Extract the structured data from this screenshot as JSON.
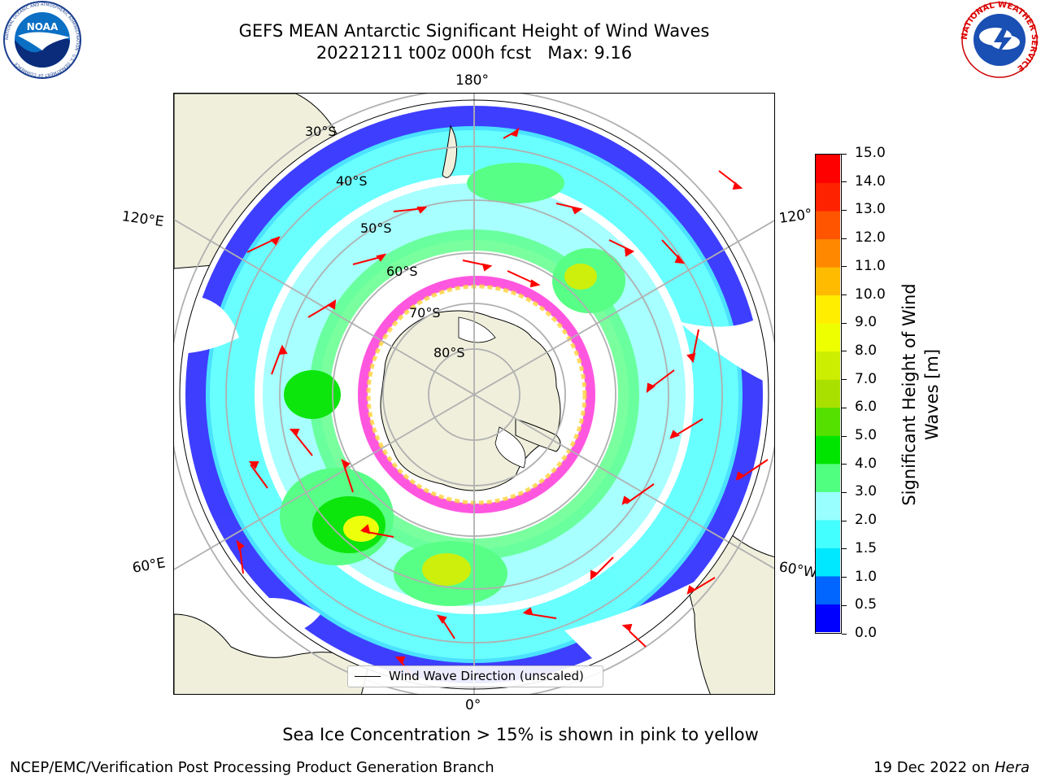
{
  "title": {
    "line1": "GEFS MEAN Antarctic Significant Height of Wind Waves",
    "line2": "20221211 t00z 000h fcst   Max: 9.16"
  },
  "map": {
    "projection": "south-polar-stereographic",
    "lon_labels": {
      "top": "180°",
      "bottom": "0°",
      "upper_left": "120°E",
      "lower_left": "60°E",
      "upper_right": "120°",
      "lower_right": "60°W"
    },
    "lat_labels": [
      "30°S",
      "40°S",
      "50°S",
      "60°S",
      "70°S",
      "80°S"
    ],
    "colors": {
      "land": "#efefdc",
      "ice_pink": "#ff44dd",
      "ice_yellow": "#ffd23a",
      "arrow": "#ff0000"
    }
  },
  "colorbar": {
    "label": "Significant Height of Wind Waves [m]",
    "tick_labels": [
      "0.0",
      "0.5",
      "1.0",
      "1.5",
      "2.0",
      "3.0",
      "4.0",
      "5.0",
      "6.0",
      "7.0",
      "8.0",
      "9.0",
      "10.0",
      "11.0",
      "12.0",
      "13.0",
      "14.0",
      "15.0"
    ],
    "colors": [
      "#0000ff",
      "#0066ff",
      "#00e8ff",
      "#44ffff",
      "#99ffff",
      "#50ff80",
      "#00e500",
      "#55e000",
      "#aae000",
      "#ccee00",
      "#eeff00",
      "#ffee00",
      "#ffbb00",
      "#ff8800",
      "#ff5500",
      "#ff2200",
      "#ff0000"
    ]
  },
  "legend": {
    "label": "Wind Wave Direction (unscaled)"
  },
  "footer": {
    "note": "Sea Ice Concentration > 15% is shown in pink to yellow",
    "credit_left": "NCEP/EMC/Verification Post Processing Product Generation Branch",
    "credit_right_date": "19 Dec 2022 on ",
    "credit_right_machine": "Hera"
  },
  "logos": {
    "noaa": {
      "text": "NOAA",
      "ring_text": "NATIONAL OCEANIC AND ATMOSPHERIC ADMINISTRATION · U.S. DEPARTMENT OF COMMERCE"
    },
    "nws": {
      "ring_text": "NATIONAL WEATHER SERVICE"
    }
  }
}
